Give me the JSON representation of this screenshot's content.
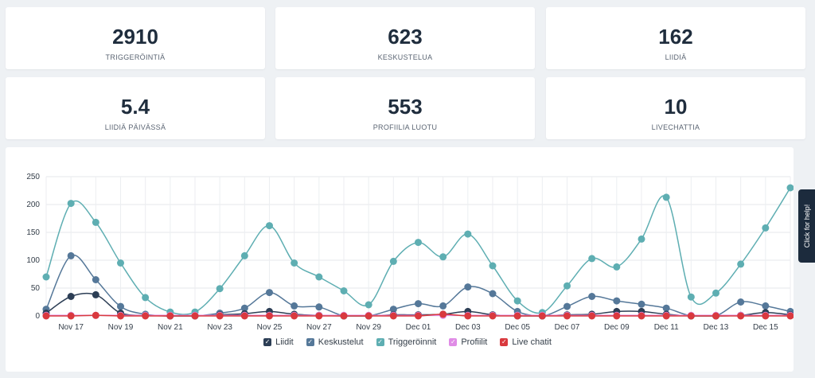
{
  "stats": [
    {
      "value": "2910",
      "label": "TRIGGERÖINTIÄ"
    },
    {
      "value": "623",
      "label": "KESKUSTELUA"
    },
    {
      "value": "162",
      "label": "LIIDIÄ"
    },
    {
      "value": "5.4",
      "label": "LIIDIÄ PÄIVÄSSÄ"
    },
    {
      "value": "553",
      "label": "PROFIILIA LUOTU"
    },
    {
      "value": "10",
      "label": "LIVECHATTIA"
    }
  ],
  "help_tab": {
    "label": "Click for help!",
    "icon": "help-icon"
  },
  "chart_data": {
    "type": "line",
    "x": [
      "Nov 16",
      "Nov 17",
      "Nov 18",
      "Nov 19",
      "Nov 20",
      "Nov 21",
      "Nov 22",
      "Nov 23",
      "Nov 24",
      "Nov 25",
      "Nov 26",
      "Nov 27",
      "Nov 28",
      "Nov 29",
      "Nov 30",
      "Dec 01",
      "Dec 02",
      "Dec 03",
      "Dec 04",
      "Dec 05",
      "Dec 06",
      "Dec 07",
      "Dec 08",
      "Dec 09",
      "Dec 10",
      "Dec 11",
      "Dec 12",
      "Dec 13",
      "Dec 14",
      "Dec 15",
      "Dec 16"
    ],
    "x_tick_labels": [
      "Nov 17",
      "Nov 19",
      "Nov 21",
      "Nov 23",
      "Nov 25",
      "Nov 27",
      "Nov 29",
      "Dec 01",
      "Dec 03",
      "Dec 05",
      "Dec 07",
      "Dec 09",
      "Dec 11",
      "Dec 13",
      "Dec 15"
    ],
    "ylim": [
      0,
      250
    ],
    "y_ticks": [
      0,
      50,
      100,
      150,
      200,
      250
    ],
    "grid": true,
    "legend_position": "bottom",
    "series": [
      {
        "name": "Liidit",
        "color": "#2c3e55",
        "values": [
          5,
          35,
          38,
          5,
          1,
          0,
          0,
          2,
          4,
          8,
          3,
          1,
          0,
          0,
          2,
          2,
          3,
          8,
          2,
          0,
          0,
          2,
          3,
          8,
          8,
          3,
          0,
          0,
          1,
          6,
          2
        ]
      },
      {
        "name": "Keskustelut",
        "color": "#557899",
        "values": [
          12,
          108,
          65,
          17,
          3,
          0,
          0,
          5,
          14,
          42,
          18,
          16,
          0,
          0,
          12,
          22,
          18,
          52,
          40,
          8,
          0,
          17,
          35,
          27,
          21,
          14,
          0,
          0,
          25,
          18,
          8
        ]
      },
      {
        "name": "Triggeröinnit",
        "color": "#5eaeb2",
        "values": [
          70,
          202,
          168,
          95,
          33,
          7,
          7,
          49,
          108,
          162,
          95,
          70,
          45,
          20,
          98,
          132,
          106,
          147,
          90,
          27,
          6,
          54,
          103,
          88,
          138,
          213,
          34,
          41,
          93,
          158,
          230
        ]
      },
      {
        "name": "Profiilit",
        "color": "#e08ce6",
        "values": [
          1,
          1,
          1,
          1,
          1,
          1,
          1,
          1,
          1,
          1,
          1,
          1,
          1,
          1,
          1,
          1,
          1,
          1,
          1,
          1,
          1,
          1,
          1,
          1,
          1,
          1,
          1,
          1,
          1,
          1,
          1
        ]
      },
      {
        "name": "Live chatit",
        "color": "#d9393e",
        "values": [
          0,
          0,
          1,
          0,
          0,
          0,
          0,
          0,
          0,
          0,
          0,
          0,
          0,
          0,
          0,
          0,
          3,
          0,
          0,
          0,
          0,
          0,
          0,
          0,
          0,
          0,
          0,
          0,
          0,
          0,
          0
        ]
      }
    ]
  }
}
